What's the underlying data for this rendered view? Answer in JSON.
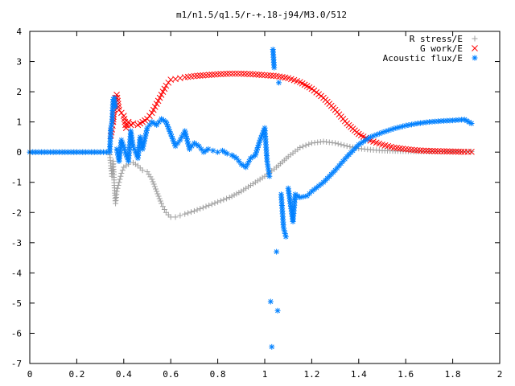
{
  "chart_data": {
    "type": "scatter",
    "title": "m1/n1.5/q1.5/r-+.18-j94/M3.0/512",
    "xlabel": "",
    "ylabel": "",
    "xlim": [
      0,
      2
    ],
    "ylim": [
      -7,
      4
    ],
    "x_ticks": [
      "0",
      "0.2",
      "0.4",
      "0.6",
      "0.8",
      "1",
      "1.2",
      "1.4",
      "1.6",
      "1.8",
      "2"
    ],
    "y_ticks": [
      "4",
      "3",
      "2",
      "1",
      "0",
      "-1",
      "-2",
      "-3",
      "-4",
      "-5",
      "-6",
      "-7"
    ],
    "grid": false,
    "legend_position": "top-right",
    "series": [
      {
        "name": "R stress/E",
        "marker": "plus",
        "color": "#a0a0a0",
        "points": [
          [
            0.0,
            0.0
          ],
          [
            0.05,
            0.0
          ],
          [
            0.1,
            0.0
          ],
          [
            0.15,
            0.0
          ],
          [
            0.2,
            0.0
          ],
          [
            0.25,
            0.0
          ],
          [
            0.3,
            0.0
          ],
          [
            0.34,
            0.0
          ],
          [
            0.345,
            -0.45
          ],
          [
            0.35,
            -0.8
          ],
          [
            0.355,
            -0.3
          ],
          [
            0.36,
            -1.1
          ],
          [
            0.365,
            -1.7
          ],
          [
            0.37,
            -1.3
          ],
          [
            0.38,
            -1.0
          ],
          [
            0.39,
            -0.7
          ],
          [
            0.4,
            -0.5
          ],
          [
            0.42,
            -0.4
          ],
          [
            0.44,
            -0.35
          ],
          [
            0.46,
            -0.45
          ],
          [
            0.48,
            -0.6
          ],
          [
            0.5,
            -0.65
          ],
          [
            0.52,
            -0.9
          ],
          [
            0.54,
            -1.3
          ],
          [
            0.56,
            -1.7
          ],
          [
            0.58,
            -2.0
          ],
          [
            0.6,
            -2.15
          ],
          [
            0.62,
            -2.15
          ],
          [
            0.64,
            -2.1
          ],
          [
            0.66,
            -2.05
          ],
          [
            0.7,
            -1.95
          ],
          [
            0.75,
            -1.8
          ],
          [
            0.8,
            -1.65
          ],
          [
            0.85,
            -1.5
          ],
          [
            0.9,
            -1.3
          ],
          [
            0.95,
            -1.05
          ],
          [
            1.0,
            -0.8
          ],
          [
            1.05,
            -0.5
          ],
          [
            1.1,
            -0.15
          ],
          [
            1.15,
            0.15
          ],
          [
            1.2,
            0.3
          ],
          [
            1.25,
            0.35
          ],
          [
            1.3,
            0.3
          ],
          [
            1.35,
            0.2
          ],
          [
            1.4,
            0.12
          ],
          [
            1.45,
            0.08
          ],
          [
            1.5,
            0.05
          ],
          [
            1.6,
            0.03
          ],
          [
            1.7,
            0.02
          ],
          [
            1.8,
            0.02
          ],
          [
            1.88,
            0.02
          ]
        ]
      },
      {
        "name": "G work/E",
        "marker": "cross",
        "color": "#ff0000",
        "points": [
          [
            0.345,
            0.55
          ],
          [
            0.35,
            0.75
          ],
          [
            0.355,
            1.0
          ],
          [
            0.36,
            1.6
          ],
          [
            0.365,
            1.8
          ],
          [
            0.37,
            1.9
          ],
          [
            0.38,
            1.4
          ],
          [
            0.39,
            1.3
          ],
          [
            0.4,
            1.2
          ],
          [
            0.41,
            0.8
          ],
          [
            0.42,
            1.0
          ],
          [
            0.43,
            0.9
          ],
          [
            0.44,
            0.95
          ],
          [
            0.46,
            0.9
          ],
          [
            0.48,
            1.0
          ],
          [
            0.5,
            1.1
          ],
          [
            0.52,
            1.3
          ],
          [
            0.54,
            1.6
          ],
          [
            0.56,
            1.9
          ],
          [
            0.58,
            2.2
          ],
          [
            0.6,
            2.4
          ],
          [
            0.62,
            2.42
          ],
          [
            0.64,
            2.45
          ],
          [
            0.66,
            2.48
          ],
          [
            0.7,
            2.52
          ],
          [
            0.75,
            2.55
          ],
          [
            0.8,
            2.58
          ],
          [
            0.85,
            2.6
          ],
          [
            0.9,
            2.6
          ],
          [
            0.95,
            2.58
          ],
          [
            1.0,
            2.55
          ],
          [
            1.05,
            2.52
          ],
          [
            1.1,
            2.45
          ],
          [
            1.15,
            2.32
          ],
          [
            1.2,
            2.1
          ],
          [
            1.25,
            1.8
          ],
          [
            1.3,
            1.4
          ],
          [
            1.35,
            0.95
          ],
          [
            1.4,
            0.6
          ],
          [
            1.45,
            0.38
          ],
          [
            1.5,
            0.25
          ],
          [
            1.55,
            0.15
          ],
          [
            1.6,
            0.1
          ],
          [
            1.65,
            0.06
          ],
          [
            1.7,
            0.04
          ],
          [
            1.75,
            0.03
          ],
          [
            1.8,
            0.02
          ],
          [
            1.85,
            0.01
          ],
          [
            1.88,
            0.01
          ]
        ]
      },
      {
        "name": "Acoustic flux/E",
        "marker": "star",
        "color": "#0080ff",
        "points": [
          [
            0.0,
            0.0
          ],
          [
            0.05,
            0.0
          ],
          [
            0.1,
            0.0
          ],
          [
            0.15,
            0.0
          ],
          [
            0.2,
            0.0
          ],
          [
            0.25,
            0.0
          ],
          [
            0.3,
            0.0
          ],
          [
            0.34,
            0.0
          ],
          [
            0.345,
            0.8
          ],
          [
            0.35,
            1.0
          ],
          [
            0.355,
            1.75
          ],
          [
            0.36,
            1.8
          ],
          [
            0.365,
            1.5
          ],
          [
            0.37,
            0.1
          ],
          [
            0.38,
            -0.3
          ],
          [
            0.39,
            0.4
          ],
          [
            0.4,
            0.2
          ],
          [
            0.41,
            -0.1
          ],
          [
            0.42,
            -0.3
          ],
          [
            0.43,
            0.7
          ],
          [
            0.44,
            0.2
          ],
          [
            0.45,
            0.0
          ],
          [
            0.46,
            -0.2
          ],
          [
            0.47,
            0.5
          ],
          [
            0.48,
            0.1
          ],
          [
            0.5,
            0.8
          ],
          [
            0.52,
            1.0
          ],
          [
            0.54,
            0.9
          ],
          [
            0.56,
            1.1
          ],
          [
            0.58,
            1.0
          ],
          [
            0.6,
            0.6
          ],
          [
            0.62,
            0.2
          ],
          [
            0.64,
            0.4
          ],
          [
            0.66,
            0.7
          ],
          [
            0.68,
            0.1
          ],
          [
            0.7,
            0.3
          ],
          [
            0.72,
            0.2
          ],
          [
            0.74,
            0.0
          ],
          [
            0.76,
            0.1
          ],
          [
            0.78,
            0.05
          ],
          [
            0.8,
            0.0
          ],
          [
            0.82,
            0.05
          ],
          [
            0.84,
            -0.05
          ],
          [
            0.86,
            -0.1
          ],
          [
            0.88,
            -0.2
          ],
          [
            0.9,
            -0.4
          ],
          [
            0.92,
            -0.5
          ],
          [
            0.94,
            -0.2
          ],
          [
            0.96,
            -0.1
          ],
          [
            0.98,
            0.4
          ],
          [
            1.0,
            0.8
          ],
          [
            1.01,
            -0.3
          ],
          [
            1.02,
            -0.8
          ],
          [
            1.025,
            -4.95
          ],
          [
            1.03,
            -6.45
          ],
          [
            1.035,
            3.4
          ],
          [
            1.04,
            2.8
          ],
          [
            1.05,
            -3.3
          ],
          [
            1.055,
            -5.25
          ],
          [
            1.06,
            2.3
          ],
          [
            1.07,
            -1.4
          ],
          [
            1.08,
            -2.5
          ],
          [
            1.09,
            -2.8
          ],
          [
            1.1,
            -1.2
          ],
          [
            1.12,
            -2.3
          ],
          [
            1.13,
            -1.4
          ],
          [
            1.15,
            -1.5
          ],
          [
            1.18,
            -1.45
          ],
          [
            1.2,
            -1.3
          ],
          [
            1.25,
            -1.0
          ],
          [
            1.3,
            -0.6
          ],
          [
            1.35,
            -0.15
          ],
          [
            1.4,
            0.25
          ],
          [
            1.45,
            0.5
          ],
          [
            1.5,
            0.65
          ],
          [
            1.55,
            0.78
          ],
          [
            1.6,
            0.88
          ],
          [
            1.65,
            0.95
          ],
          [
            1.7,
            1.0
          ],
          [
            1.75,
            1.03
          ],
          [
            1.8,
            1.05
          ],
          [
            1.85,
            1.08
          ],
          [
            1.88,
            0.95
          ]
        ]
      }
    ]
  }
}
